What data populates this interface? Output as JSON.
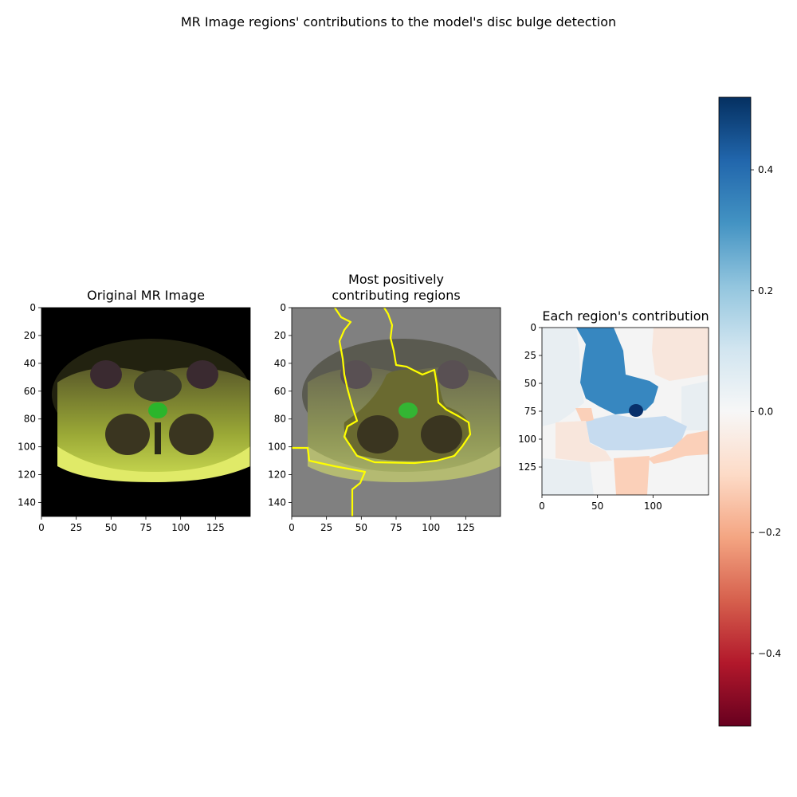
{
  "figure": {
    "suptitle": "MR Image regions' contributions to the model's disc bulge detection"
  },
  "panels": [
    {
      "title": "Original MR Image",
      "x_ticks": [
        "0",
        "25",
        "50",
        "75",
        "100",
        "125"
      ],
      "y_ticks": [
        "0",
        "20",
        "40",
        "60",
        "80",
        "100",
        "120",
        "140"
      ]
    },
    {
      "title": "Most positively\ncontributing regions",
      "boundary_color": "#ffff00",
      "x_ticks": [
        "0",
        "25",
        "50",
        "75",
        "100",
        "125"
      ],
      "y_ticks": [
        "0",
        "20",
        "40",
        "60",
        "80",
        "100",
        "120",
        "140"
      ]
    },
    {
      "title": "Each region's contribution",
      "x_ticks": [
        "0",
        "50",
        "100"
      ],
      "y_ticks": [
        "0",
        "25",
        "50",
        "75",
        "100",
        "125"
      ]
    }
  ],
  "colorbar": {
    "colormap": "RdBu",
    "range": [
      -0.52,
      0.52
    ],
    "ticks": [
      "0.4",
      "0.2",
      "0.0",
      "−0.2",
      "−0.4"
    ]
  },
  "colors": {
    "deep_blue": "#08306b",
    "blue": "#3787c0",
    "light_blue": "#c6dbef",
    "very_light_blue": "#e8eef2",
    "neutral": "#f4f4f4",
    "light_red": "#fbd0b9",
    "very_light_red": "#f8e6dc"
  }
}
